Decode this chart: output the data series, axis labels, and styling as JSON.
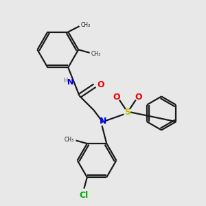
{
  "bg_color": "#e8e8e8",
  "bond_color": "#1a1a1a",
  "N_color": "#0000ee",
  "O_color": "#ee0000",
  "S_color": "#bbbb00",
  "Cl_color": "#00aa00",
  "line_width": 1.6,
  "fig_size": [
    3.0,
    3.0
  ],
  "dpi": 100,
  "xlim": [
    0,
    10
  ],
  "ylim": [
    0,
    10
  ]
}
